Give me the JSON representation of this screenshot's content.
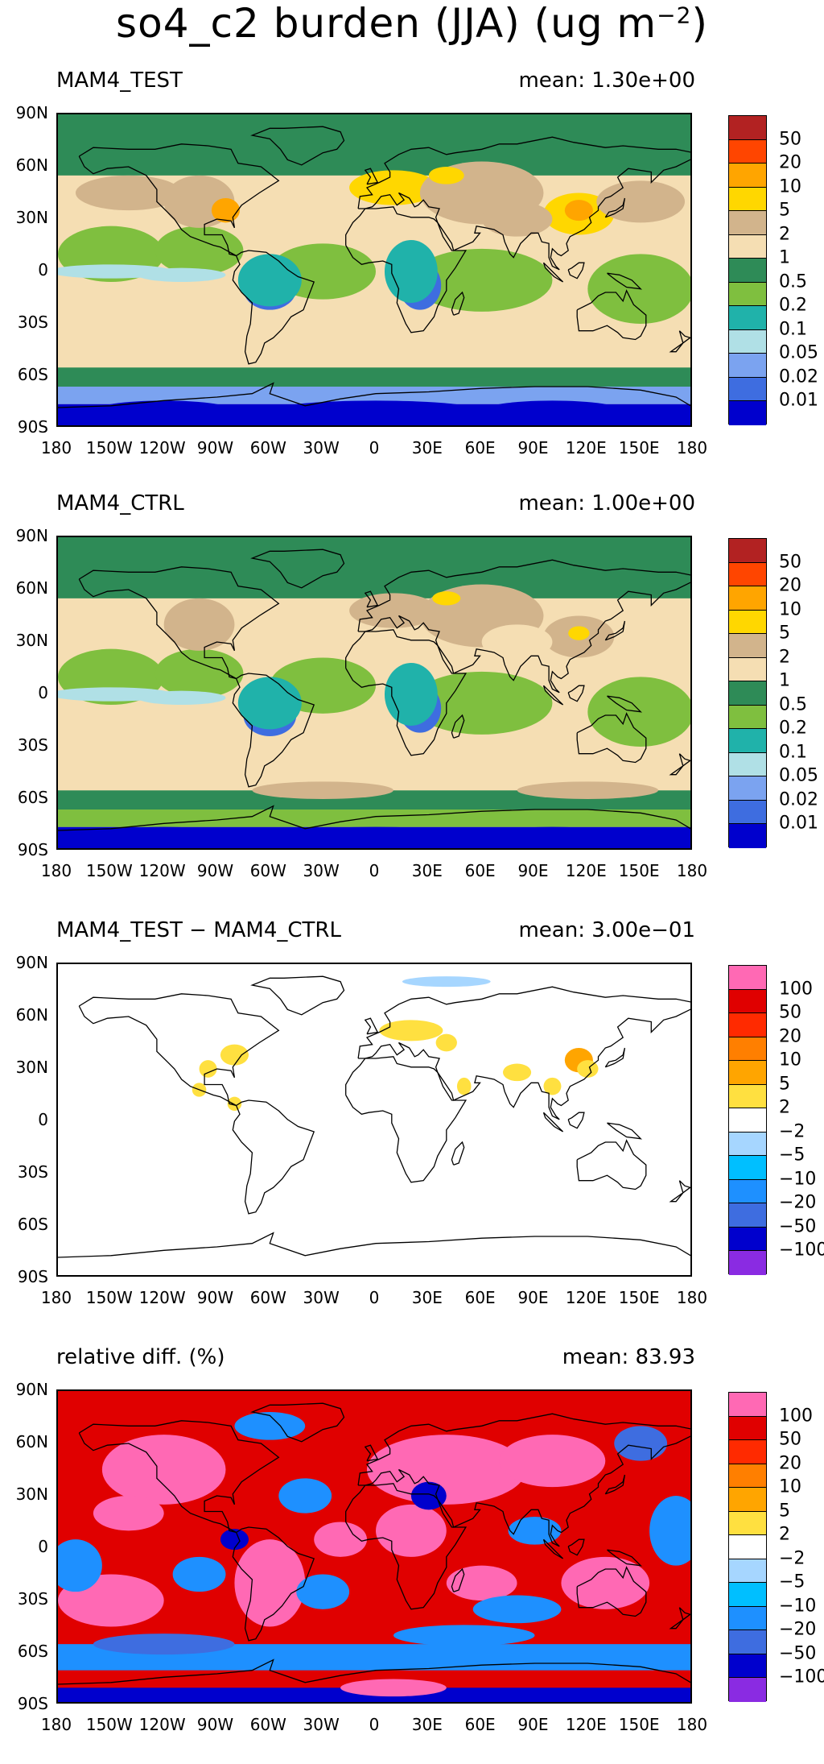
{
  "figure_title": "so4_c2 burden (JJA) (ug m",
  "figure_title_sup": "−2",
  "xticks": [
    "180",
    "150W",
    "120W",
    "90W",
    "60W",
    "30W",
    "0",
    "30E",
    "60E",
    "90E",
    "120E",
    "150E",
    "180"
  ],
  "yticks": [
    "90N",
    "60N",
    "30N",
    "0",
    "30S",
    "60S",
    "90S"
  ],
  "burden_colors": [
    "#b22222",
    "#ff4500",
    "#ffa500",
    "#ffd700",
    "#d2b48c",
    "#f5deb3",
    "#2e8b57",
    "#7fbf3f",
    "#20b2aa",
    "#b0e0e6",
    "#7ba3f0",
    "#3e6de0",
    "#0000cd"
  ],
  "burden_labels": [
    "50",
    "20",
    "10",
    "5",
    "2",
    "1",
    "0.5",
    "0.2",
    "0.1",
    "0.05",
    "0.02",
    "0.01"
  ],
  "diff_colors": [
    "#ff69b4",
    "#e00000",
    "#ff2a00",
    "#ff7f00",
    "#ffa500",
    "#ffe040",
    "#ffffff",
    "#a6d6ff",
    "#00bfff",
    "#1e90ff",
    "#3e6de0",
    "#0000cd",
    "#8a2be2"
  ],
  "diff_labels": [
    "100",
    "50",
    "20",
    "10",
    "5",
    "2",
    "−2",
    "−5",
    "−10",
    "−20",
    "−50",
    "−100"
  ],
  "panels": [
    {
      "title": "MAM4_TEST",
      "mean": "mean: 1.30e+00",
      "scale": "burden",
      "style": "test"
    },
    {
      "title": "MAM4_CTRL",
      "mean": "mean: 1.00e+00",
      "scale": "burden",
      "style": "ctrl"
    },
    {
      "title": "MAM4_TEST − MAM4_CTRL",
      "mean": "mean: 3.00e−01",
      "scale": "diff",
      "style": "diff"
    },
    {
      "title": "relative diff. (%)",
      "mean": "mean: 83.93",
      "scale": "diff",
      "style": "rel"
    }
  ]
}
